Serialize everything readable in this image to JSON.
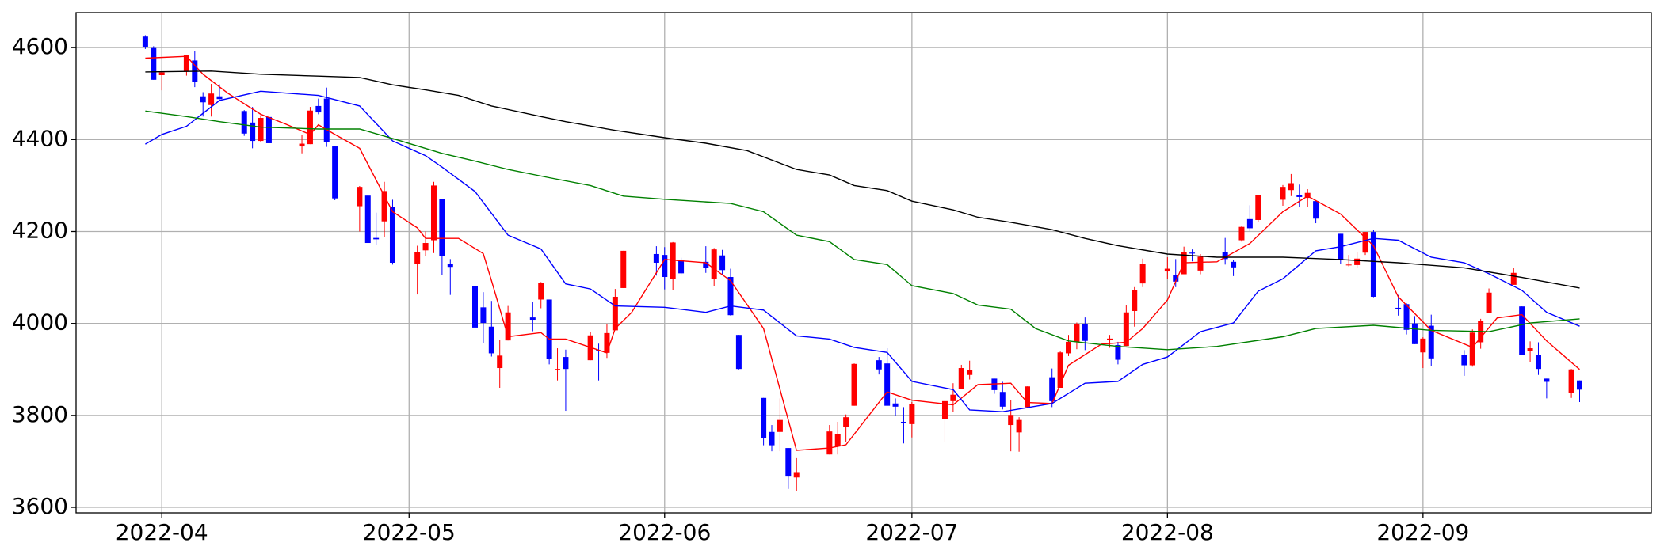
{
  "chart_data": {
    "type": "candlestick",
    "x": [
      -2,
      -1,
      0,
      3,
      4,
      5,
      6,
      7,
      10,
      11,
      12,
      13,
      17,
      18,
      19,
      20,
      21,
      24,
      25,
      26,
      27,
      28,
      31,
      32,
      33,
      34,
      35,
      38,
      39,
      40,
      41,
      42,
      45,
      46,
      47,
      48,
      49,
      52,
      53,
      54,
      55,
      56,
      60,
      61,
      62,
      63,
      66,
      67,
      68,
      69,
      70,
      73,
      74,
      75,
      76,
      77,
      81,
      82,
      83,
      84,
      87,
      88,
      89,
      90,
      91,
      95,
      96,
      97,
      98,
      101,
      102,
      103,
      104,
      105,
      108,
      109,
      110,
      111,
      112,
      115,
      116,
      117,
      118,
      119,
      122,
      123,
      124,
      125,
      126,
      129,
      130,
      131,
      132,
      133,
      136,
      137,
      138,
      139,
      140,
      143,
      144,
      145,
      146,
      147,
      150,
      151,
      152,
      153,
      154,
      158,
      159,
      160,
      161,
      164,
      165,
      166,
      167,
      168,
      171,
      172
    ],
    "open": [
      4624,
      4599,
      4540,
      4548,
      4572,
      4494,
      4475,
      4494,
      4462,
      4437,
      4397,
      4449,
      4385,
      4390,
      4473,
      4489,
      4385,
      4255,
      4278,
      4186,
      4222,
      4253,
      4130,
      4159,
      4181,
      4270,
      4129,
      4081,
      4035,
      3993,
      3903,
      3963,
      4013,
      4052,
      4052,
      3900,
      3927,
      3920,
      3942,
      3936,
      3985,
      4077,
      4151,
      4149,
      4096,
      4137,
      4134,
      4096,
      4148,
      4101,
      3975,
      3838,
      3764,
      3764,
      3729,
      3665,
      3715,
      3733,
      3775,
      3821,
      3920,
      3913,
      3826,
      3786,
      3781,
      3792,
      3831,
      3858,
      3888,
      3880,
      3851,
      3779,
      3763,
      3818,
      3883,
      3860,
      3935,
      3960,
      3999,
      3965,
      3953,
      3951,
      4027,
      4087,
      4113,
      4105,
      4107,
      4154,
      4115,
      4155,
      4134,
      4181,
      4227,
      4225,
      4269,
      4290,
      4280,
      4273,
      4266,
      4195,
      4128,
      4127,
      4154,
      4199,
      4034,
      4042,
      4000,
      3937,
      3995,
      3931,
      3909,
      3959,
      4022,
      4084,
      4037,
      3940,
      3932,
      3880,
      3849,
      3876
    ],
    "high": [
      4627,
      4603,
      4548,
      4583,
      4593,
      4503,
      4521,
      4520,
      4464,
      4471,
      4453,
      4453,
      4410,
      4471,
      4489,
      4513,
      4385,
      4299,
      4278,
      4241,
      4308,
      4269,
      4169,
      4200,
      4308,
      4270,
      4140,
      4081,
      4068,
      4049,
      3965,
      4038,
      4047,
      4090,
      4052,
      3946,
      3943,
      3982,
      3956,
      3999,
      4075,
      4158,
      4168,
      4166,
      4177,
      4143,
      4168,
      4164,
      4160,
      4119,
      3975,
      3838,
      3779,
      3837,
      3729,
      3707,
      3779,
      3786,
      3802,
      3913,
      3927,
      3946,
      3837,
      3818,
      3829,
      3832,
      3870,
      3910,
      3919,
      3880,
      3873,
      3834,
      3796,
      3863,
      3902,
      3939,
      3975,
      4002,
      4013,
      3975,
      3960,
      4039,
      4079,
      4141,
      4144,
      4140,
      4167,
      4161,
      4151,
      4186,
      4138,
      4211,
      4257,
      4280,
      4301,
      4325,
      4302,
      4292,
      4266,
      4195,
      4149,
      4156,
      4199,
      4203,
      4062,
      4044,
      4016,
      3970,
      4019,
      3942,
      3987,
      4010,
      4076,
      4120,
      4037,
      3961,
      3959,
      3880,
      3901,
      3876
    ],
    "low": [
      4597,
      4530,
      4507,
      4539,
      4514,
      4450,
      4450,
      4487,
      4408,
      4381,
      4395,
      4392,
      4370,
      4390,
      4455,
      4384,
      4268,
      4200,
      4175,
      4171,
      4188,
      4128,
      4063,
      4147,
      4153,
      4106,
      4062,
      3975,
      3958,
      3928,
      3860,
      3963,
      3983,
      4033,
      3911,
      3876,
      3810,
      3920,
      3876,
      3925,
      3985,
      4077,
      4104,
      4074,
      4073,
      4107,
      4110,
      4081,
      4107,
      4017,
      3900,
      3735,
      3722,
      3722,
      3640,
      3636,
      3715,
      3715,
      3743,
      3821,
      3889,
      3821,
      3799,
      3739,
      3752,
      3743,
      3808,
      3858,
      3878,
      3847,
      3813,
      3722,
      3721,
      3817,
      3818,
      3860,
      3929,
      3944,
      3942,
      3947,
      3911,
      3951,
      3993,
      4079,
      4096,
      4079,
      4107,
      4135,
      4107,
      4128,
      4103,
      4178,
      4201,
      4220,
      4256,
      4277,
      4253,
      4253,
      4218,
      4129,
      4124,
      4120,
      4149,
      4057,
      4017,
      3976,
      3955,
      3903,
      3907,
      3886,
      3906,
      3945,
      4022,
      4084,
      3932,
      3916,
      3888,
      3837,
      3838,
      3829
    ],
    "close": [
      4602,
      4530,
      4546,
      4583,
      4525,
      4481,
      4500,
      4488,
      4413,
      4397,
      4447,
      4392,
      4391,
      4463,
      4459,
      4394,
      4272,
      4297,
      4175,
      4183,
      4288,
      4132,
      4155,
      4175,
      4300,
      4147,
      4123,
      3991,
      4001,
      3935,
      3930,
      4024,
      4008,
      4088,
      3923,
      3901,
      3901,
      3974,
      3941,
      3979,
      4058,
      4158,
      4132,
      4101,
      4176,
      4109,
      4121,
      4161,
      4116,
      4018,
      3901,
      3750,
      3735,
      3790,
      3667,
      3675,
      3765,
      3760,
      3796,
      3912,
      3900,
      3821,
      3819,
      3785,
      3825,
      3831,
      3845,
      3903,
      3899,
      3855,
      3819,
      3801,
      3790,
      3863,
      3831,
      3937,
      3960,
      3999,
      3962,
      3967,
      3921,
      4024,
      4072,
      4130,
      4119,
      4091,
      4155,
      4152,
      4145,
      4140,
      4122,
      4210,
      4207,
      4280,
      4297,
      4305,
      4275,
      4284,
      4228,
      4138,
      4128,
      4141,
      4199,
      4058,
      4031,
      3986,
      3955,
      3967,
      3924,
      3909,
      3980,
      4006,
      4067,
      4110,
      3932,
      3946,
      3901,
      3873,
      3900,
      3856
    ],
    "up_color": "#ff0000",
    "down_color": "#0000ff",
    "lines": [
      {
        "color": "#ff0000",
        "x": [
          -2,
          3,
          5,
          8,
          12,
          15,
          18,
          19,
          21,
          24,
          28,
          31,
          32,
          36,
          39,
          40,
          42,
          46,
          47,
          49,
          54,
          55,
          57,
          61,
          66,
          69,
          73,
          77,
          81,
          83,
          88,
          91,
          96,
          99,
          103,
          105,
          108,
          110,
          114,
          117,
          119,
          122,
          124,
          128,
          132,
          136,
          139,
          143,
          147,
          150,
          154,
          159,
          162,
          165,
          168,
          172
        ],
        "values": [
          4577,
          4581,
          4542,
          4501,
          4455,
          4434,
          4411,
          4432,
          4411,
          4381,
          4243,
          4208,
          4185,
          4185,
          4152,
          4093,
          3971,
          3980,
          3966,
          3966,
          3936,
          3989,
          4024,
          4139,
          4132,
          4093,
          3989,
          3724,
          3729,
          3736,
          3851,
          3833,
          3823,
          3867,
          3870,
          3828,
          3826,
          3909,
          3955,
          3959,
          3989,
          4051,
          4132,
          4134,
          4174,
          4243,
          4277,
          4238,
          4169,
          4058,
          3985,
          3948,
          4012,
          4019,
          3962,
          3900
        ]
      },
      {
        "color": "#0000ff",
        "x": [
          -2,
          0,
          3,
          7,
          12,
          19,
          24,
          28,
          32,
          34,
          38,
          42,
          46,
          49,
          52,
          55,
          61,
          66,
          69,
          73,
          77,
          81,
          84,
          88,
          91,
          96,
          98,
          102,
          108,
          112,
          116,
          119,
          122,
          126,
          130,
          133,
          136,
          140,
          143,
          147,
          150,
          154,
          158,
          161,
          165,
          168,
          172
        ],
        "values": [
          4390,
          4411,
          4429,
          4485,
          4505,
          4496,
          4473,
          4397,
          4365,
          4340,
          4287,
          4192,
          4162,
          4086,
          4075,
          4038,
          4035,
          4024,
          4038,
          4029,
          3973,
          3966,
          3948,
          3937,
          3874,
          3856,
          3812,
          3808,
          3826,
          3870,
          3874,
          3911,
          3927,
          3982,
          4001,
          4070,
          4097,
          4158,
          4167,
          4185,
          4181,
          4144,
          4132,
          4108,
          4072,
          4024,
          3994
        ]
      },
      {
        "color": "#008000",
        "x": [
          -2,
          3,
          7,
          12,
          19,
          24,
          29,
          34,
          38,
          42,
          47,
          52,
          56,
          61,
          69,
          73,
          77,
          81,
          84,
          88,
          91,
          96,
          99,
          103,
          106,
          110,
          116,
          122,
          128,
          136,
          140,
          147,
          154,
          161,
          166,
          172
        ],
        "values": [
          4462,
          4450,
          4439,
          4427,
          4423,
          4423,
          4397,
          4370,
          4353,
          4335,
          4317,
          4300,
          4277,
          4270,
          4261,
          4243,
          4192,
          4178,
          4139,
          4128,
          4082,
          4065,
          4040,
          4031,
          3989,
          3962,
          3950,
          3943,
          3950,
          3971,
          3989,
          3996,
          3985,
          3982,
          4001,
          4010
        ]
      },
      {
        "color": "#000000",
        "x": [
          -2,
          6,
          12,
          19,
          24,
          28,
          32,
          36,
          40,
          46,
          49,
          55,
          61,
          66,
          71,
          77,
          81,
          84,
          88,
          91,
          96,
          99,
          103,
          108,
          112,
          116,
          122,
          128,
          136,
          143,
          150,
          158,
          165,
          172
        ],
        "values": [
          4547,
          4549,
          4542,
          4538,
          4535,
          4519,
          4508,
          4496,
          4473,
          4450,
          4439,
          4420,
          4404,
          4392,
          4376,
          4335,
          4323,
          4300,
          4289,
          4266,
          4247,
          4231,
          4220,
          4204,
          4185,
          4169,
          4151,
          4144,
          4144,
          4139,
          4132,
          4121,
          4100,
          4077
        ]
      }
    ],
    "xlim": [
      -10.4,
      180.7
    ],
    "xticks": [
      {
        "value": 0,
        "label": "2022-04"
      },
      {
        "value": 30,
        "label": "2022-05"
      },
      {
        "value": 61,
        "label": "2022-06"
      },
      {
        "value": 91,
        "label": "2022-07"
      },
      {
        "value": 122,
        "label": "2022-08"
      },
      {
        "value": 153,
        "label": "2022-09"
      }
    ],
    "ylim": [
      3588,
      4676
    ],
    "yticks": [
      3600,
      3800,
      4000,
      4200,
      4400,
      4600
    ],
    "grid": true
  }
}
